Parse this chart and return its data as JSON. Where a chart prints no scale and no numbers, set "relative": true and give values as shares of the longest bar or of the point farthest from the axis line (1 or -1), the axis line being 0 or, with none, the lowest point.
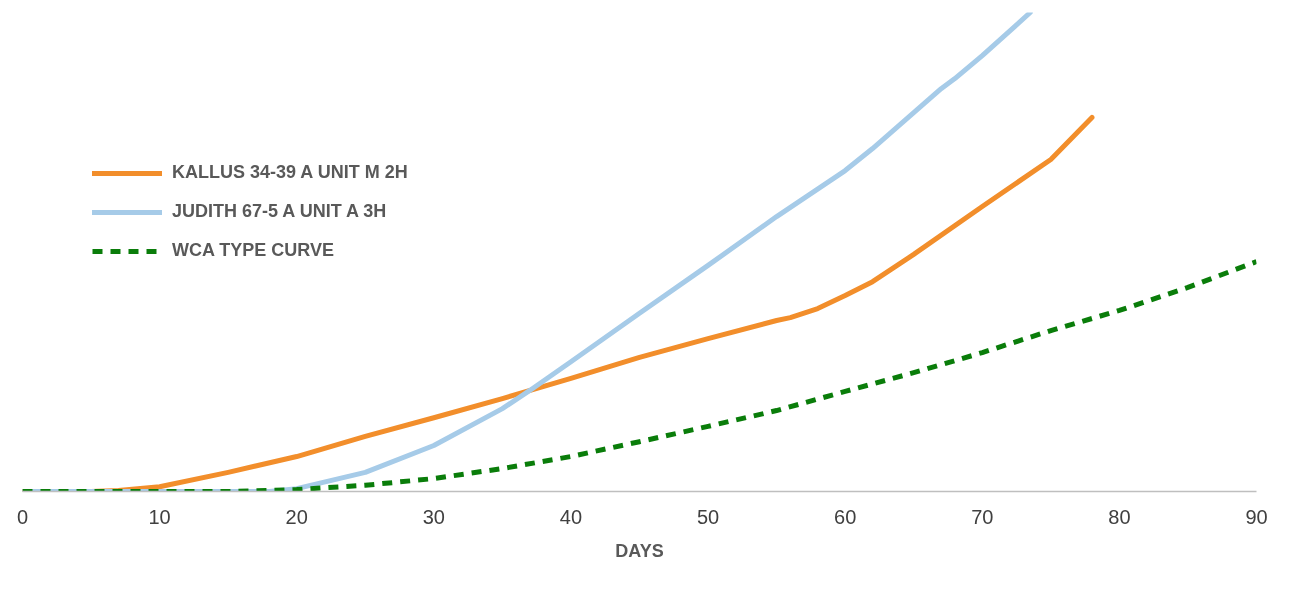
{
  "chart_data": {
    "type": "line",
    "relative": true,
    "xlabel": "DAYS",
    "xlim": [
      0,
      90
    ],
    "xticks": [
      0,
      10,
      20,
      30,
      40,
      50,
      60,
      70,
      80,
      90
    ],
    "grid": false,
    "legend": "top left",
    "series": [
      {
        "name": "KALLUS 34-39 A UNIT M 2H",
        "color": "#f28e2b",
        "line_style": "solid",
        "x": [
          0,
          5,
          7,
          10,
          15,
          20,
          25,
          30,
          35,
          40,
          45,
          50,
          55,
          56,
          58,
          60,
          62,
          65,
          70,
          75,
          78
        ],
        "values": [
          0,
          0,
          0.002,
          0.01,
          0.04,
          0.073,
          0.115,
          0.154,
          0.194,
          0.236,
          0.28,
          0.319,
          0.357,
          0.363,
          0.382,
          0.409,
          0.438,
          0.495,
          0.595,
          0.693,
          0.781
        ]
      },
      {
        "name": "JUDITH 67-5 A UNIT A 3H",
        "color": "#a6cbe8",
        "line_style": "solid",
        "x": [
          0,
          18,
          20,
          25,
          30,
          35,
          37,
          40,
          45,
          50,
          55,
          60,
          62,
          65,
          67,
          68,
          70,
          73.5
        ],
        "values": [
          0,
          0,
          0.006,
          0.04,
          0.096,
          0.173,
          0.211,
          0.271,
          0.372,
          0.472,
          0.574,
          0.67,
          0.716,
          0.791,
          0.841,
          0.862,
          0.91,
          1.0
        ]
      },
      {
        "name": "WCA TYPE CURVE",
        "color": "#0a7d0a",
        "line_style": "dashed",
        "x": [
          0,
          10,
          15,
          20,
          25,
          30,
          35,
          40,
          45,
          50,
          55,
          60,
          65,
          70,
          75,
          80,
          85,
          90
        ],
        "values": [
          0,
          0,
          0,
          0.004,
          0.013,
          0.027,
          0.048,
          0.073,
          0.104,
          0.136,
          0.169,
          0.209,
          0.248,
          0.29,
          0.336,
          0.378,
          0.426,
          0.48
        ]
      }
    ]
  }
}
